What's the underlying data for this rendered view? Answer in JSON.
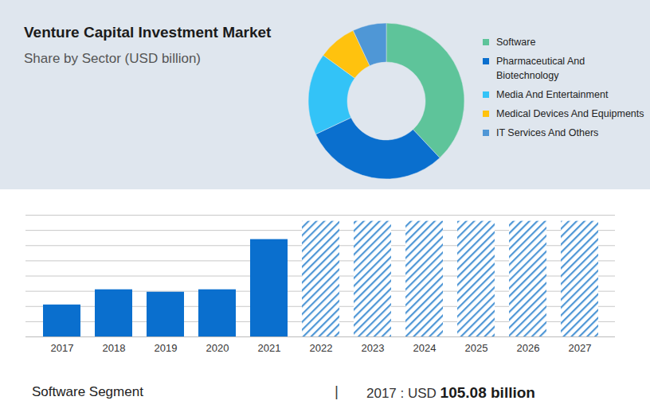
{
  "chart_data": [
    {
      "type": "pie",
      "title": "Venture Capital Investment Market",
      "subtitle": "Share by Sector (USD billion)",
      "categories": [
        "Software",
        "Pharmaceutical And Biotechnology",
        "Media And Entertainment",
        "Medical Devices And Equipments",
        "IT Services And Others"
      ],
      "values": [
        38,
        30,
        17,
        8,
        7
      ],
      "colors": [
        "#5ec49a",
        "#0a6fce",
        "#33c3f7",
        "#ffc20e",
        "#4f97d6"
      ],
      "legend": "right"
    },
    {
      "type": "bar",
      "categories": [
        "2017",
        "2018",
        "2019",
        "2020",
        "2021",
        "2022",
        "2023",
        "2024",
        "2025",
        "2026",
        "2027"
      ],
      "series": [
        {
          "color": "#0a6fce",
          "values": [
            105.08,
            155,
            147,
            155,
            320,
            null,
            null,
            null,
            null,
            null,
            null
          ]
        },
        {
          "color": "#4f97d6",
          "line_style": "hatched",
          "values": [
            null,
            null,
            null,
            null,
            null,
            380,
            380,
            380,
            380,
            380,
            380
          ]
        }
      ],
      "ylim": [
        0,
        400
      ],
      "yticks": [
        0,
        50,
        100,
        150,
        200,
        250,
        300,
        350,
        400
      ],
      "grid": true,
      "tick_labels": "x"
    }
  ],
  "footer": {
    "label": "Software Segment",
    "separator": "|",
    "prefix": "2017 : USD",
    "highlight": "105.08 billion"
  }
}
